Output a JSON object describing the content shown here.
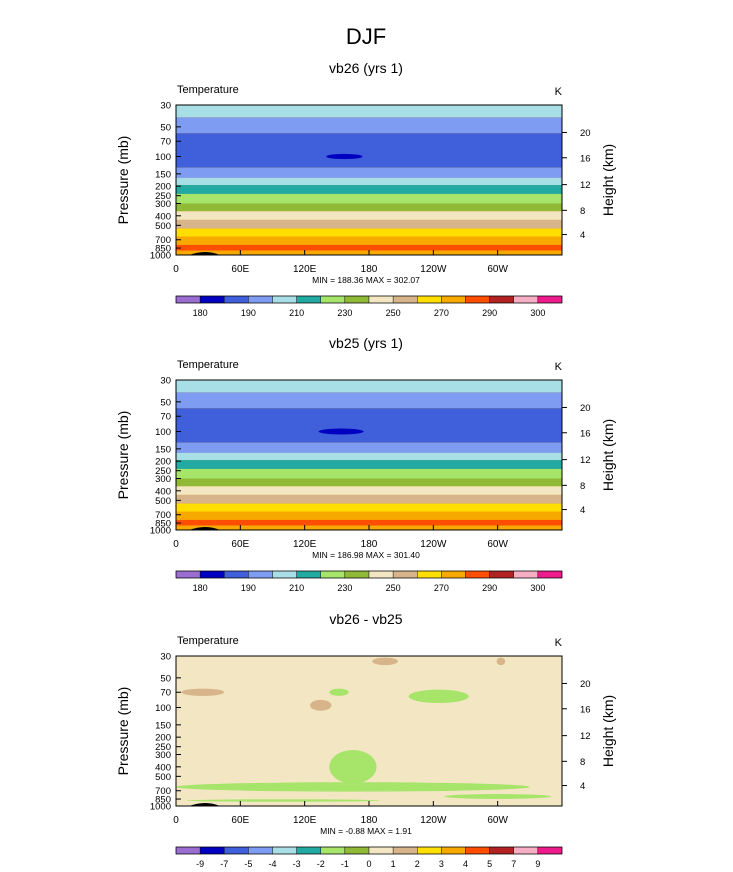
{
  "title": "DJF",
  "y_left_label": "Pressure (mb)",
  "y_right_label": "Height (km)",
  "chart_data": [
    {
      "type": "heatmap",
      "title": "vb26 (yrs 1)",
      "left_string": "Temperature",
      "right_string": "K",
      "stats": "MIN = 188.36  MAX = 302.07",
      "x_ticks": [
        "0",
        "60E",
        "120E",
        "180",
        "120W",
        "60W"
      ],
      "y_ticks": [
        "30",
        "50",
        "70",
        "100",
        "150",
        "200",
        "250",
        "300",
        "400",
        "500",
        "700",
        "850",
        "1000"
      ],
      "height_ticks": [
        "20",
        "16",
        "12",
        "8",
        "4"
      ],
      "colorbar_labels": [
        "180",
        "190",
        "210",
        "230",
        "250",
        "270",
        "290",
        "300"
      ],
      "bands": [
        {
          "p_top": 30,
          "p_bot": 40,
          "level": 4
        },
        {
          "p_top": 40,
          "p_bot": 58,
          "level": 3
        },
        {
          "p_top": 58,
          "p_bot": 130,
          "level": 2
        },
        {
          "p_top": 130,
          "p_bot": 165,
          "level": 3
        },
        {
          "p_top": 165,
          "p_bot": 195,
          "level": 4
        },
        {
          "p_top": 195,
          "p_bot": 240,
          "level": 5
        },
        {
          "p_top": 240,
          "p_bot": 300,
          "level": 6
        },
        {
          "p_top": 300,
          "p_bot": 360,
          "level": 7
        },
        {
          "p_top": 360,
          "p_bot": 440,
          "level": 8
        },
        {
          "p_top": 440,
          "p_bot": 540,
          "level": 9
        },
        {
          "p_top": 540,
          "p_bot": 650,
          "level": 10
        },
        {
          "p_top": 650,
          "p_bot": 790,
          "level": 11
        },
        {
          "p_top": 790,
          "p_bot": 900,
          "level": 12
        },
        {
          "p_top": 900,
          "p_bot": 1000,
          "level": 11
        }
      ],
      "blobs": [
        {
          "lon": 157,
          "p": 100,
          "lon_half": 17,
          "p_half": 6,
          "level": 1
        }
      ]
    },
    {
      "type": "heatmap",
      "title": "vb25 (yrs 1)",
      "left_string": "Temperature",
      "right_string": "K",
      "stats": "MIN = 186.98  MAX = 301.40",
      "x_ticks": [
        "0",
        "60E",
        "120E",
        "180",
        "120W",
        "60W"
      ],
      "y_ticks": [
        "30",
        "50",
        "70",
        "100",
        "150",
        "200",
        "250",
        "300",
        "400",
        "500",
        "700",
        "850",
        "1000"
      ],
      "height_ticks": [
        "20",
        "16",
        "12",
        "8",
        "4"
      ],
      "colorbar_labels": [
        "180",
        "190",
        "210",
        "230",
        "250",
        "270",
        "290",
        "300"
      ],
      "bands": [
        {
          "p_top": 30,
          "p_bot": 40,
          "level": 4
        },
        {
          "p_top": 40,
          "p_bot": 58,
          "level": 3
        },
        {
          "p_top": 58,
          "p_bot": 130,
          "level": 2
        },
        {
          "p_top": 130,
          "p_bot": 165,
          "level": 3
        },
        {
          "p_top": 165,
          "p_bot": 195,
          "level": 4
        },
        {
          "p_top": 195,
          "p_bot": 240,
          "level": 5
        },
        {
          "p_top": 240,
          "p_bot": 300,
          "level": 6
        },
        {
          "p_top": 300,
          "p_bot": 360,
          "level": 7
        },
        {
          "p_top": 360,
          "p_bot": 440,
          "level": 8
        },
        {
          "p_top": 440,
          "p_bot": 540,
          "level": 9
        },
        {
          "p_top": 540,
          "p_bot": 650,
          "level": 10
        },
        {
          "p_top": 650,
          "p_bot": 790,
          "level": 11
        },
        {
          "p_top": 790,
          "p_bot": 900,
          "level": 12
        },
        {
          "p_top": 900,
          "p_bot": 1000,
          "level": 11
        }
      ],
      "blobs": [
        {
          "lon": 154,
          "p": 100,
          "lon_half": 21,
          "p_half": 7,
          "level": 1
        }
      ]
    },
    {
      "type": "heatmap",
      "title": "vb26 - vb25",
      "left_string": "Temperature",
      "right_string": "K",
      "stats": "MIN = -0.88  MAX =  1.91",
      "x_ticks": [
        "0",
        "60E",
        "120E",
        "180",
        "120W",
        "60W"
      ],
      "y_ticks": [
        "30",
        "50",
        "70",
        "100",
        "150",
        "200",
        "250",
        "300",
        "400",
        "500",
        "700",
        "850",
        "1000"
      ],
      "height_ticks": [
        "20",
        "16",
        "12",
        "8",
        "4"
      ],
      "colorbar_labels": [
        "-9",
        "-7",
        "-5",
        "-4",
        "-3",
        "-2",
        "-1",
        "0",
        "1",
        "2",
        "3",
        "4",
        "5",
        "7",
        "9"
      ],
      "background_level": 8,
      "bands": [],
      "blobs": [
        {
          "lon": 165,
          "p": 640,
          "lon_half": 165,
          "p_half": 70,
          "level": 6
        },
        {
          "lon": 165,
          "p": 400,
          "lon_half": 22,
          "p_half": 150,
          "level": 6
        },
        {
          "lon": 100,
          "p": 880,
          "lon_half": 90,
          "p_half": 25,
          "level": 6
        },
        {
          "lon": 300,
          "p": 800,
          "lon_half": 50,
          "p_half": 45,
          "level": 6
        },
        {
          "lon": 245,
          "p": 77,
          "lon_half": 28,
          "p_half": 12,
          "level": 6
        },
        {
          "lon": 152,
          "p": 70,
          "lon_half": 9,
          "p_half": 6,
          "level": 6
        },
        {
          "lon": 25,
          "p": 70,
          "lon_half": 20,
          "p_half": 6,
          "level": 9
        },
        {
          "lon": 135,
          "p": 95,
          "lon_half": 10,
          "p_half": 12,
          "level": 9
        },
        {
          "lon": 195,
          "p": 34,
          "lon_half": 12,
          "p_half": 3,
          "level": 9
        },
        {
          "lon": 303,
          "p": 34,
          "lon_half": 4,
          "p_half": 3,
          "level": 9
        }
      ]
    }
  ]
}
